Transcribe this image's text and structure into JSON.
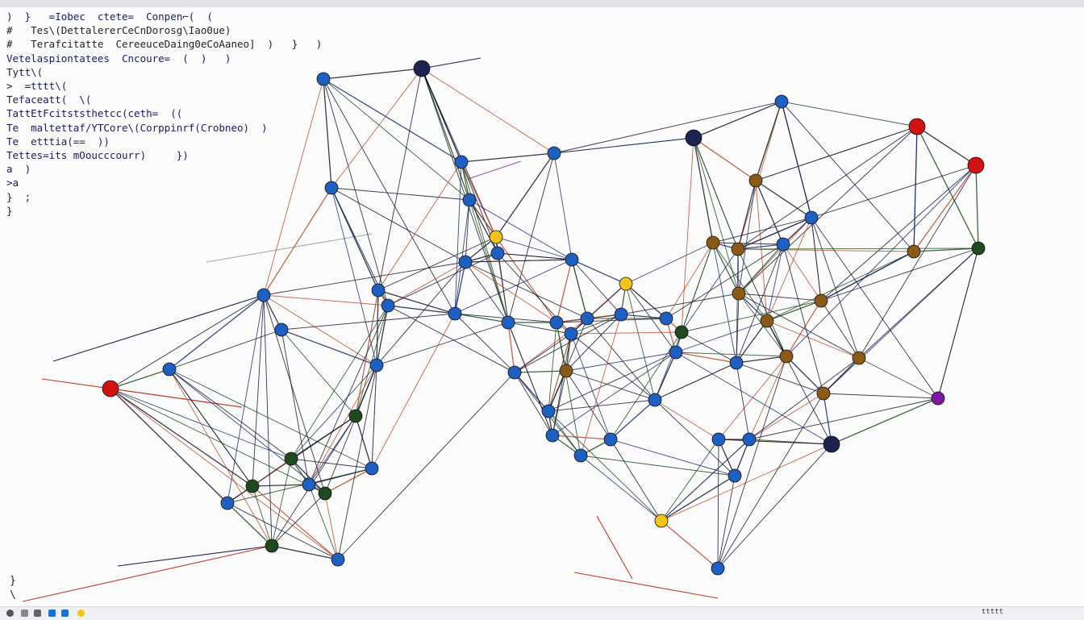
{
  "editor": {
    "code_lines": [
      ")  }   =Iobec  ctete=  Conpen⌐(  (",
      "#   Tes\\(DettalererCeCnDorosg\\Iao0ue)",
      "#   Terafcitatte  CereeuceDaing0eCoAaneo]  )   }   )",
      "Vetelaspiontatees  Cncoure=  (  )   )",
      "Tytt\\(",
      ">  =tttt\\(",
      "Tefaceatt(  \\(",
      "TattEtFcitststhetcc(ceth=  ((",
      "Te  maltettaf/YTCore\\(Corppinrf(Crobneo)  )",
      "Te  etttia(==  ))",
      "Tettes=its mOoucccourr)     })",
      "a  )",
      ">a",
      "}  ;",
      "}"
    ],
    "footer_lines": [
      "}",
      "\\"
    ]
  },
  "taskbar": {
    "tray_text": "ttttt"
  }
}
